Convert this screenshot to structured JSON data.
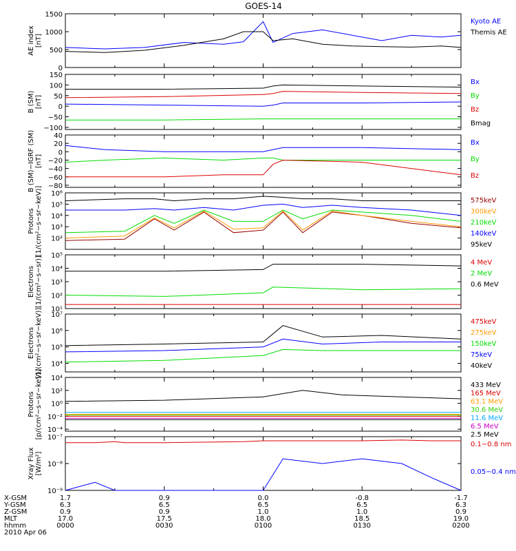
{
  "title": "GOES-14",
  "date": "2010 Apr 06",
  "orbit_table": {
    "row_labels": [
      "X-GSM",
      "Y-GSM",
      "Z-GSM",
      "MLT",
      "hhmm"
    ],
    "columns": [
      [
        "1.7",
        "6.3",
        "0.9",
        "17.0",
        "0000"
      ],
      [
        "0.9",
        "6.5",
        "0.9",
        "17.5",
        "0030"
      ],
      [
        "0.0",
        "6.5",
        "1.0",
        "18.0",
        "0100"
      ],
      [
        "-0.8",
        "6.5",
        "1.0",
        "18.5",
        "0130"
      ],
      [
        "-1.7",
        "6.3",
        "0.9",
        "19.0",
        "0200"
      ]
    ]
  },
  "colors": {
    "black": "#000000",
    "blue": "#0000ff",
    "red": "#dd0000",
    "green": "#00dd00",
    "orange": "#ff9900",
    "lime": "#33cc00",
    "cyan": "#00aaff",
    "maroon": "#990000",
    "magenta": "#cc00cc"
  },
  "chart_data": [
    {
      "type": "line",
      "panel": "ae",
      "ylabel": [
        "AE index",
        "[nT]"
      ],
      "ylim": [
        0,
        1500
      ],
      "yscale": "linear",
      "yticks": [
        0,
        500,
        1000,
        1500
      ],
      "ytick_labels": [
        "0",
        "500",
        "1000",
        "1500"
      ],
      "x_hours": [
        0.0,
        0.2,
        0.4,
        0.6,
        0.8,
        0.9,
        1.0,
        1.05,
        1.15,
        1.3,
        1.45,
        1.6,
        1.75,
        1.9,
        2.0
      ],
      "series": [
        {
          "name": "Kyoto AE",
          "color": "#0000ff",
          "values": [
            560,
            520,
            560,
            700,
            650,
            720,
            1280,
            700,
            950,
            1050,
            900,
            750,
            900,
            850,
            900
          ]
        },
        {
          "name": "Themis AE",
          "color": "#000000",
          "values": [
            450,
            420,
            480,
            620,
            800,
            1000,
            1000,
            750,
            800,
            650,
            600,
            580,
            570,
            600,
            560
          ]
        }
      ]
    },
    {
      "type": "line",
      "panel": "bsm",
      "ylabel": [
        "B (SM)",
        "[nT]"
      ],
      "ylim": [
        -110,
        150
      ],
      "yscale": "linear",
      "yticks": [
        -100,
        -50,
        0,
        50,
        100,
        150
      ],
      "ytick_labels": [
        "−100",
        "−50",
        "0",
        "50",
        "100",
        "150"
      ],
      "x_hours": [
        0.0,
        0.5,
        1.0,
        1.05,
        1.1,
        1.5,
        2.0
      ],
      "series": [
        {
          "name": "Bx",
          "color": "#0000ff",
          "values": [
            10,
            5,
            0,
            5,
            15,
            15,
            20
          ]
        },
        {
          "name": "By",
          "color": "#00dd00",
          "values": [
            -65,
            -65,
            -60,
            -60,
            -60,
            -60,
            -60
          ]
        },
        {
          "name": "Bz",
          "color": "#dd0000",
          "values": [
            40,
            45,
            55,
            60,
            70,
            65,
            60
          ]
        },
        {
          "name": "Bmag",
          "color": "#000000",
          "values": [
            80,
            80,
            85,
            95,
            100,
            95,
            90
          ]
        }
      ]
    },
    {
      "type": "line",
      "panel": "bigrf",
      "ylabel": [
        "B (SM)−IGRF (SM)",
        "[nT]"
      ],
      "ylim": [
        -85,
        40
      ],
      "yscale": "linear",
      "yticks": [
        -80,
        -60,
        -40,
        -20,
        0,
        20,
        40
      ],
      "ytick_labels": [
        "−80",
        "−60",
        "−40",
        "−20",
        "0",
        "20",
        "40"
      ],
      "x_hours": [
        0.0,
        0.2,
        0.5,
        0.8,
        1.0,
        1.05,
        1.1,
        1.5,
        2.0
      ],
      "series": [
        {
          "name": "Bx",
          "color": "#0000ff",
          "values": [
            15,
            5,
            0,
            0,
            0,
            5,
            10,
            10,
            5
          ]
        },
        {
          "name": "By",
          "color": "#00dd00",
          "values": [
            -25,
            -20,
            -15,
            -20,
            -15,
            -15,
            -20,
            -20,
            -20
          ]
        },
        {
          "name": "Bz",
          "color": "#dd0000",
          "values": [
            -60,
            -60,
            -60,
            -55,
            -55,
            -30,
            -20,
            -25,
            -55
          ]
        }
      ]
    },
    {
      "type": "line",
      "panel": "protons_kev",
      "ylabel": [
        "Protons",
        "[1/(cm²−s−sr−keV)]"
      ],
      "ylim": [
        10,
        1000000
      ],
      "yscale": "log",
      "yticks": [
        100,
        1000,
        10000,
        100000,
        1000000
      ],
      "ytick_labels": [
        "10²",
        "10³",
        "10⁴",
        "10⁵",
        "10⁶"
      ],
      "x_hours": [
        0.0,
        0.3,
        0.45,
        0.55,
        0.7,
        0.85,
        1.0,
        1.1,
        1.2,
        1.35,
        1.5,
        1.75,
        2.0
      ],
      "series": [
        {
          "name": "575keV",
          "color": "#990000",
          "values": [
            60,
            80,
            5000,
            500,
            20000,
            300,
            500,
            20000,
            300,
            20000,
            10000,
            2000,
            800
          ]
        },
        {
          "name": "300keV",
          "color": "#ff9900",
          "values": [
            100,
            150,
            6000,
            800,
            25000,
            600,
            800,
            25000,
            500,
            25000,
            10000,
            3000,
            1000
          ]
        },
        {
          "name": "210keV",
          "color": "#00dd00",
          "values": [
            300,
            400,
            10000,
            2000,
            30000,
            3000,
            3000,
            30000,
            5000,
            30000,
            20000,
            10000,
            3000
          ]
        },
        {
          "name": "140keV",
          "color": "#0000ff",
          "values": [
            30000,
            30000,
            40000,
            30000,
            50000,
            30000,
            80000,
            100000,
            50000,
            80000,
            50000,
            30000,
            10000
          ]
        },
        {
          "name": "95keV",
          "color": "#000000",
          "values": [
            200000,
            300000,
            300000,
            200000,
            300000,
            300000,
            500000,
            400000,
            300000,
            300000,
            200000,
            200000,
            200000
          ]
        }
      ]
    },
    {
      "type": "line",
      "panel": "electrons_mev",
      "ylabel": [
        "Electrons",
        "[1/(cm²−s−sr)]"
      ],
      "ylim": [
        10,
        100000
      ],
      "yscale": "log",
      "yticks": [
        10,
        100,
        1000,
        10000,
        100000
      ],
      "ytick_labels": [
        "10¹",
        "10²",
        "10³",
        "10⁴",
        "10⁵"
      ],
      "x_hours": [
        0.0,
        0.5,
        1.0,
        1.05,
        1.5,
        2.0
      ],
      "series": [
        {
          "name": "4 MeV",
          "color": "#dd0000",
          "values": [
            20,
            20,
            20,
            20,
            20,
            20
          ]
        },
        {
          "name": "2 MeV",
          "color": "#00dd00",
          "values": [
            100,
            80,
            150,
            400,
            250,
            300
          ]
        },
        {
          "name": "0.6 MeV",
          "color": "#000000",
          "values": [
            6000,
            6000,
            8000,
            20000,
            20000,
            15000
          ]
        }
      ]
    },
    {
      "type": "line",
      "panel": "electrons_kev",
      "ylabel": [
        "Electrons",
        "[1/(cm²−s−sr−keV)]"
      ],
      "ylim": [
        3000,
        10000000
      ],
      "yscale": "log",
      "yticks": [
        10000,
        100000,
        1000000,
        10000000
      ],
      "ytick_labels": [
        "10⁴",
        "10⁵",
        "10⁶",
        "10⁷"
      ],
      "x_hours": [
        0.0,
        0.5,
        1.0,
        1.1,
        1.3,
        1.6,
        2.0
      ],
      "series": [
        {
          "name": "475keV",
          "color": "#dd0000",
          "values": [
            null,
            null,
            null,
            null,
            null,
            null,
            null
          ]
        },
        {
          "name": "275keV",
          "color": "#ff9900",
          "values": [
            null,
            null,
            null,
            null,
            null,
            null,
            null
          ]
        },
        {
          "name": "150keV",
          "color": "#00dd00",
          "values": [
            12000,
            15000,
            30000,
            70000,
            60000,
            60000,
            60000
          ]
        },
        {
          "name": "75keV",
          "color": "#0000ff",
          "values": [
            50000,
            60000,
            100000,
            300000,
            150000,
            200000,
            200000
          ]
        },
        {
          "name": "40keV",
          "color": "#000000",
          "values": [
            120000,
            150000,
            200000,
            2000000,
            400000,
            500000,
            300000
          ]
        }
      ]
    },
    {
      "type": "line",
      "panel": "protons_mev",
      "ylabel": [
        "Protons",
        "[p/(cm²−s−sr−keV)]"
      ],
      "ylim": [
        5e-05,
        10000
      ],
      "yscale": "log",
      "yticks": [
        0.0001,
        0.01,
        1,
        100,
        10000
      ],
      "ytick_labels": [
        "10⁻⁴",
        "10⁻²",
        "10⁰",
        "10²",
        "10⁴"
      ],
      "x_hours": [
        0.0,
        0.5,
        1.0,
        1.2,
        1.4,
        1.7,
        2.0
      ],
      "series": [
        {
          "name": "433 MeV",
          "color": "#000000",
          "values": [
            2,
            3,
            10,
            100,
            20,
            10,
            5
          ]
        },
        {
          "name": "165 MeV",
          "color": "#dd0000",
          "values": [
            0.01,
            0.01,
            0.01,
            0.01,
            0.01,
            0.01,
            0.01
          ]
        },
        {
          "name": "63.1 MeV",
          "color": "#ff9900",
          "values": [
            0.02,
            0.02,
            0.02,
            0.02,
            0.02,
            0.02,
            0.02
          ]
        },
        {
          "name": "30.6 MeV",
          "color": "#33cc00",
          "values": [
            0.015,
            0.015,
            0.015,
            0.015,
            0.015,
            0.015,
            0.015
          ]
        },
        {
          "name": "11.6 MeV",
          "color": "#00aaff",
          "values": [
            0.04,
            0.04,
            0.04,
            0.04,
            0.04,
            0.04,
            0.04
          ]
        },
        {
          "name": "6.5 MeV",
          "color": "#cc00cc",
          "values": [
            0.005,
            0.005,
            0.005,
            0.005,
            0.005,
            0.005,
            0.005
          ]
        },
        {
          "name": "2.5 MeV",
          "color": "#000000",
          "values": [
            0.003,
            0.003,
            0.003,
            0.003,
            0.003,
            0.003,
            0.003
          ]
        }
      ]
    },
    {
      "type": "line",
      "panel": "xray",
      "ylabel": [
        "Xray Flux",
        "[W/m²]"
      ],
      "ylim": [
        1e-09,
        1e-07
      ],
      "yscale": "log",
      "yticks": [
        1e-09,
        1e-08,
        1e-07
      ],
      "ytick_labels": [
        "10⁻⁹",
        "10⁻⁸",
        "10⁻⁷"
      ],
      "x_hours": [
        0.0,
        0.15,
        0.25,
        0.3,
        0.5,
        0.9,
        1.0,
        1.1,
        1.3,
        1.5,
        1.7,
        1.85,
        2.0
      ],
      "series": [
        {
          "name": "0.1−0.8 nm",
          "color": "#dd0000",
          "values": [
            6e-08,
            6e-08,
            6.5e-08,
            6e-08,
            6e-08,
            6.5e-08,
            7e-08,
            7e-08,
            7e-08,
            7e-08,
            7.5e-08,
            7e-08,
            7e-08
          ]
        },
        {
          "name": "0.05−0.4 nm",
          "color": "#0000ff",
          "values": [
            1e-09,
            2e-09,
            1e-09,
            1e-09,
            1e-09,
            1e-09,
            1e-09,
            1.5e-08,
            1e-08,
            1.5e-08,
            1e-08,
            3e-09,
            1e-09
          ]
        }
      ]
    }
  ]
}
